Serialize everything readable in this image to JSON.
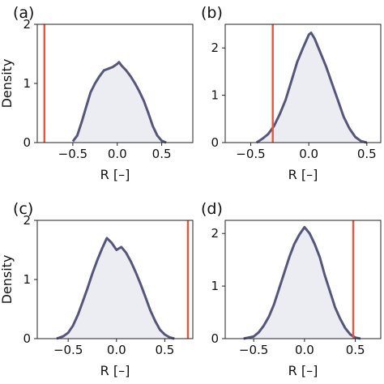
{
  "chart_data": [
    {
      "panel": "(a)",
      "type": "area",
      "xlabel": "R [–]",
      "ylabel": "Density",
      "xlim": [
        -0.9,
        0.85
      ],
      "ylim": [
        0,
        2.0
      ],
      "xticks": [
        -0.5,
        0.0,
        0.5
      ],
      "xtick_labels": [
        "−0.5",
        "0.0",
        "0.5"
      ],
      "yticks": [
        0,
        1,
        2
      ],
      "ytick_labels": [
        "0",
        "1",
        "2"
      ],
      "vline": -0.82,
      "x": [
        -0.5,
        -0.45,
        -0.4,
        -0.35,
        -0.3,
        -0.25,
        -0.2,
        -0.15,
        -0.1,
        -0.05,
        0.0,
        0.02,
        0.05,
        0.1,
        0.15,
        0.2,
        0.25,
        0.3,
        0.35,
        0.4,
        0.45,
        0.5,
        0.55
      ],
      "y": [
        0.02,
        0.12,
        0.35,
        0.6,
        0.85,
        1.0,
        1.12,
        1.22,
        1.25,
        1.28,
        1.33,
        1.36,
        1.3,
        1.22,
        1.12,
        1.0,
        0.86,
        0.7,
        0.5,
        0.28,
        0.12,
        0.03,
        0.0
      ]
    },
    {
      "panel": "(b)",
      "type": "area",
      "xlabel": "R [–]",
      "ylabel": "",
      "xlim": [
        -0.72,
        0.62
      ],
      "ylim": [
        0,
        2.5
      ],
      "xticks": [
        -0.5,
        0.0,
        0.5
      ],
      "xtick_labels": [
        "−0.5",
        "0.0",
        "0.5"
      ],
      "yticks": [
        0,
        1,
        2
      ],
      "ytick_labels": [
        "0",
        "1",
        "2"
      ],
      "vline": -0.31,
      "x": [
        -0.45,
        -0.4,
        -0.35,
        -0.3,
        -0.25,
        -0.2,
        -0.15,
        -0.1,
        -0.05,
        0.0,
        0.02,
        0.05,
        0.1,
        0.15,
        0.2,
        0.25,
        0.3,
        0.35,
        0.4,
        0.45,
        0.5
      ],
      "y": [
        0.0,
        0.08,
        0.18,
        0.35,
        0.6,
        0.9,
        1.3,
        1.7,
        2.0,
        2.28,
        2.32,
        2.2,
        1.9,
        1.6,
        1.25,
        0.9,
        0.55,
        0.3,
        0.12,
        0.03,
        0.0
      ]
    },
    {
      "panel": "(c)",
      "type": "area",
      "xlabel": "R [–]",
      "ylabel": "Density",
      "xlim": [
        -0.82,
        0.79
      ],
      "ylim": [
        0,
        2.0
      ],
      "xticks": [
        -0.5,
        0.0,
        0.5
      ],
      "xtick_labels": [
        "−0.5",
        "0.0",
        "0.5"
      ],
      "yticks": [
        0,
        1,
        2
      ],
      "ytick_labels": [
        "0",
        "1",
        "2"
      ],
      "vline": 0.74,
      "x": [
        -0.62,
        -0.55,
        -0.5,
        -0.45,
        -0.4,
        -0.35,
        -0.3,
        -0.25,
        -0.2,
        -0.15,
        -0.1,
        -0.05,
        0.0,
        0.05,
        0.1,
        0.15,
        0.2,
        0.25,
        0.3,
        0.35,
        0.4,
        0.45,
        0.5,
        0.55,
        0.6
      ],
      "y": [
        0.0,
        0.04,
        0.1,
        0.22,
        0.4,
        0.62,
        0.85,
        1.1,
        1.32,
        1.52,
        1.7,
        1.62,
        1.5,
        1.55,
        1.45,
        1.3,
        1.12,
        0.92,
        0.7,
        0.48,
        0.3,
        0.15,
        0.07,
        0.02,
        0.0
      ]
    },
    {
      "panel": "(d)",
      "type": "area",
      "xlabel": "R [–]",
      "ylabel": "",
      "xlim": [
        -0.78,
        0.75
      ],
      "ylim": [
        0,
        2.25
      ],
      "xticks": [
        -0.5,
        0.0,
        0.5
      ],
      "xtick_labels": [
        "−0.5",
        "0.0",
        "0.5"
      ],
      "yticks": [
        0,
        1,
        2
      ],
      "ytick_labels": [
        "0",
        "1",
        "2"
      ],
      "vline": 0.48,
      "x": [
        -0.6,
        -0.5,
        -0.45,
        -0.4,
        -0.35,
        -0.3,
        -0.25,
        -0.2,
        -0.15,
        -0.1,
        -0.05,
        0.0,
        0.05,
        0.1,
        0.15,
        0.2,
        0.25,
        0.3,
        0.35,
        0.4,
        0.45,
        0.5,
        0.55
      ],
      "y": [
        0.0,
        0.04,
        0.12,
        0.25,
        0.42,
        0.65,
        0.95,
        1.25,
        1.55,
        1.8,
        1.98,
        2.12,
        2.0,
        1.8,
        1.55,
        1.2,
        0.9,
        0.6,
        0.38,
        0.2,
        0.08,
        0.02,
        0.0
      ]
    }
  ]
}
